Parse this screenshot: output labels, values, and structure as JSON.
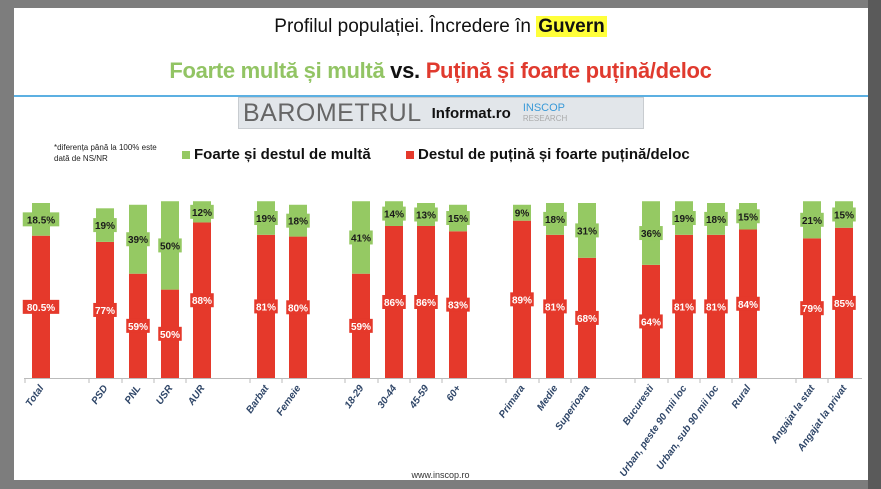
{
  "header": {
    "title_prefix": "Profilul populației. Încredere în ",
    "title_highlight": "Guvern",
    "subtitle_green": "Foarte multă și multă",
    "subtitle_vs": " vs. ",
    "subtitle_red": "Puțină și foarte puțină/deloc"
  },
  "logo": {
    "barometru": "BAROMETRUL",
    "informat": "Informat.ro",
    "inscop": "INSCOP",
    "research": "RESEARCH"
  },
  "note": "*diferența până la 100% este dată de NS/NR",
  "footer": "www.inscop.ro",
  "colors": {
    "green": "#95c963",
    "red": "#e5392b"
  },
  "chart_data": {
    "type": "bar",
    "stacked": true,
    "ylim": [
      0,
      100
    ],
    "grid": false,
    "legend": "top",
    "categories": [
      "Total",
      "PSD",
      "PNL",
      "USR",
      "AUR",
      "Barbat",
      "Femeie",
      "18-29",
      "30-44",
      "45-59",
      "60+",
      "Primara",
      "Medie",
      "Superioara",
      "Bucuresti",
      "Urban, peste 90 mii loc",
      "Urban, sub 90 mii loc",
      "Rural",
      "Angajat la stat",
      "Angajat la privat"
    ],
    "groups": [
      [
        0
      ],
      [
        1,
        2,
        3,
        4
      ],
      [
        5,
        6
      ],
      [
        7,
        8,
        9,
        10
      ],
      [
        11,
        12,
        13
      ],
      [
        14,
        15,
        16,
        17
      ],
      [
        18,
        19
      ]
    ],
    "series": [
      {
        "name": "Destul de puțină și foarte puțină/deloc",
        "values": [
          80.5,
          77,
          59,
          50,
          88,
          81,
          80,
          59,
          86,
          86,
          83,
          89,
          81,
          68,
          64,
          81,
          81,
          84,
          79,
          85
        ],
        "labels": [
          "80.5%",
          "77%",
          "59%",
          "50%",
          "88%",
          "81%",
          "80%",
          "59%",
          "86%",
          "86%",
          "83%",
          "89%",
          "81%",
          "68%",
          "64%",
          "81%",
          "81%",
          "84%",
          "79%",
          "85%"
        ]
      },
      {
        "name": "Foarte și destul de multă",
        "values": [
          18.5,
          19,
          39,
          50,
          12,
          19,
          18,
          41,
          14,
          13,
          15,
          9,
          18,
          31,
          36,
          19,
          18,
          15,
          21,
          15
        ],
        "labels": [
          "18.5%",
          "19%",
          "39%",
          "50%",
          "12%",
          "19%",
          "18%",
          "41%",
          "14%",
          "13%",
          "15%",
          "9%",
          "18%",
          "31%",
          "36%",
          "19%",
          "18%",
          "15%",
          "21%",
          "15%"
        ]
      }
    ]
  }
}
